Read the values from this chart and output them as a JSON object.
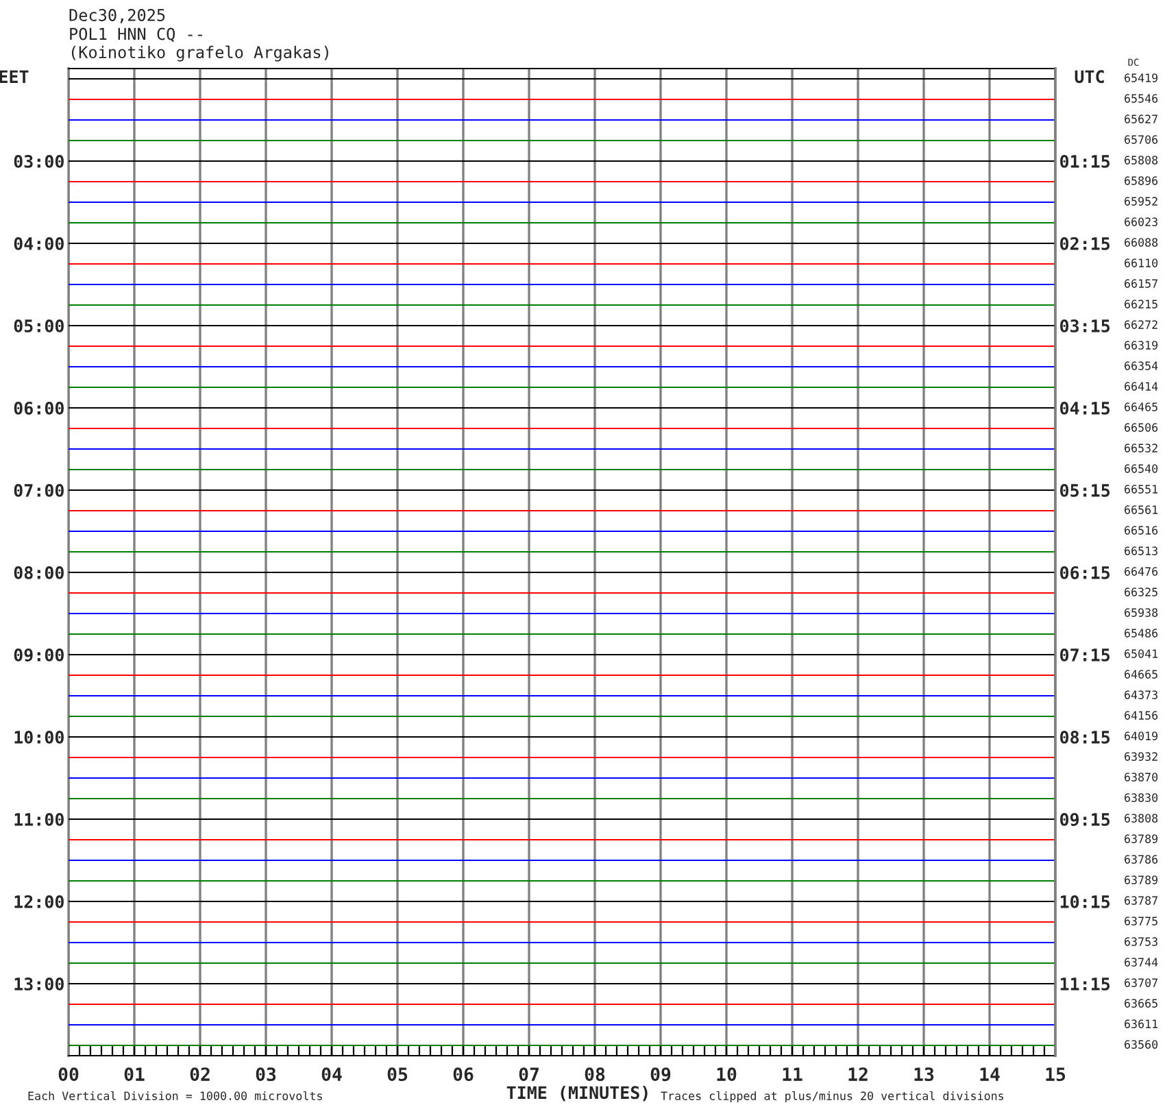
{
  "chart_data": {
    "type": "line",
    "title": "Dec30,2025",
    "subtitle": "POL1 HNN CQ --\n(Koinotiko grafelo Argakas)",
    "xlabel": "TIME (MINUTES)",
    "ylabel": "EET",
    "y2label": "UTC",
    "annotations": [
      "DC",
      "Each Vertical Division = 1000.00 microvolts",
      "Traces clipped at plus/minus 20 vertical divisions",
      "65419",
      "65546",
      "65627",
      "65706",
      "65808",
      "65896",
      "65952",
      "66023",
      "66088",
      "66110",
      "66157",
      "66215",
      "66272",
      "66319",
      "66354",
      "66414",
      "66465",
      "66506",
      "66532",
      "66540",
      "66551",
      "66561",
      "66516",
      "66513",
      "66476",
      "66325",
      "65938",
      "65486",
      "65041",
      "64665",
      "64373",
      "64156",
      "64019",
      "63932",
      "63870",
      "63830",
      "63808",
      "63789",
      "63786",
      "63789",
      "63787",
      "63775",
      "63753",
      "63744",
      "63707",
      "63665",
      "63611",
      "63560"
    ],
    "x": [
      0,
      15
    ],
    "series": [
      {
        "color": "#000000",
        "values": [
          2,
          2
        ]
      },
      {
        "color": "#ff0000",
        "values": [
          2.25,
          2.25
        ]
      },
      {
        "color": "#0000ff",
        "values": [
          2.5,
          2.5
        ]
      },
      {
        "color": "#008000",
        "values": [
          2.75,
          2.75
        ]
      },
      {
        "color": "#000000",
        "values": [
          3,
          3
        ]
      },
      {
        "color": "#ff0000",
        "values": [
          3.25,
          3.25
        ]
      },
      {
        "color": "#0000ff",
        "values": [
          3.5,
          3.5
        ]
      },
      {
        "color": "#008000",
        "values": [
          3.75,
          3.75
        ]
      },
      {
        "color": "#000000",
        "values": [
          4,
          4
        ]
      },
      {
        "color": "#ff0000",
        "values": [
          4.25,
          4.25
        ]
      },
      {
        "color": "#0000ff",
        "values": [
          4.5,
          4.5
        ]
      },
      {
        "color": "#008000",
        "values": [
          4.75,
          4.75
        ]
      },
      {
        "color": "#000000",
        "values": [
          5,
          5
        ]
      },
      {
        "color": "#ff0000",
        "values": [
          5.25,
          5.25
        ]
      },
      {
        "color": "#0000ff",
        "values": [
          5.5,
          5.5
        ]
      },
      {
        "color": "#008000",
        "values": [
          5.75,
          5.75
        ]
      },
      {
        "color": "#000000",
        "values": [
          6,
          6
        ]
      },
      {
        "color": "#ff0000",
        "values": [
          6.25,
          6.25
        ]
      },
      {
        "color": "#0000ff",
        "values": [
          6.5,
          6.5
        ]
      },
      {
        "color": "#008000",
        "values": [
          6.75,
          6.75
        ]
      },
      {
        "color": "#000000",
        "values": [
          7,
          7
        ]
      },
      {
        "color": "#ff0000",
        "values": [
          7.25,
          7.25
        ]
      },
      {
        "color": "#0000ff",
        "values": [
          7.5,
          7.5
        ]
      },
      {
        "color": "#008000",
        "values": [
          7.75,
          7.75
        ]
      },
      {
        "color": "#000000",
        "values": [
          8,
          8
        ]
      },
      {
        "color": "#ff0000",
        "values": [
          8.25,
          8.25
        ]
      },
      {
        "color": "#0000ff",
        "values": [
          8.5,
          8.5
        ]
      },
      {
        "color": "#008000",
        "values": [
          8.75,
          8.75
        ]
      },
      {
        "color": "#000000",
        "values": [
          9,
          9
        ]
      },
      {
        "color": "#ff0000",
        "values": [
          9.25,
          9.25
        ]
      },
      {
        "color": "#0000ff",
        "values": [
          9.5,
          9.5
        ]
      },
      {
        "color": "#008000",
        "values": [
          9.75,
          9.75
        ]
      },
      {
        "color": "#000000",
        "values": [
          10,
          10
        ]
      },
      {
        "color": "#ff0000",
        "values": [
          10.25,
          10.25
        ]
      },
      {
        "color": "#0000ff",
        "values": [
          10.5,
          10.5
        ]
      },
      {
        "color": "#008000",
        "values": [
          10.75,
          10.75
        ]
      },
      {
        "color": "#000000",
        "values": [
          11,
          11
        ]
      },
      {
        "color": "#ff0000",
        "values": [
          11.25,
          11.25
        ]
      },
      {
        "color": "#0000ff",
        "values": [
          11.5,
          11.5
        ]
      },
      {
        "color": "#008000",
        "values": [
          11.75,
          11.75
        ]
      },
      {
        "color": "#000000",
        "values": [
          12,
          12
        ]
      },
      {
        "color": "#ff0000",
        "values": [
          12.25,
          12.25
        ]
      },
      {
        "color": "#0000ff",
        "values": [
          12.5,
          12.5
        ]
      },
      {
        "color": "#008000",
        "values": [
          12.75,
          12.75
        ]
      },
      {
        "color": "#000000",
        "values": [
          13,
          13
        ]
      },
      {
        "color": "#ff0000",
        "values": [
          13.25,
          13.25
        ]
      },
      {
        "color": "#0000ff",
        "values": [
          13.5,
          13.5
        ]
      },
      {
        "color": "#008000",
        "values": [
          13.75,
          13.75
        ]
      }
    ],
    "xlim": [
      0,
      15
    ],
    "xticks": [
      {
        "value": 0,
        "label": "00"
      },
      {
        "value": 1,
        "label": "01"
      },
      {
        "value": 2,
        "label": "02"
      },
      {
        "value": 3,
        "label": "03"
      },
      {
        "value": 4,
        "label": "04"
      },
      {
        "value": 5,
        "label": "05"
      },
      {
        "value": 6,
        "label": "06"
      },
      {
        "value": 7,
        "label": "07"
      },
      {
        "value": 8,
        "label": "08"
      },
      {
        "value": 9,
        "label": "09"
      },
      {
        "value": 10,
        "label": "10"
      },
      {
        "value": 11,
        "label": "11"
      },
      {
        "value": 12,
        "label": "12"
      },
      {
        "value": 13,
        "label": "13"
      },
      {
        "value": 14,
        "label": "14"
      },
      {
        "value": 15,
        "label": "15"
      },
      {
        "value": 0.167,
        "label": null
      },
      {
        "value": 0.333,
        "label": null
      },
      {
        "value": 0.5,
        "label": null
      },
      {
        "value": 0.667,
        "label": null
      },
      {
        "value": 0.833,
        "label": null
      },
      {
        "value": 1.167,
        "label": null
      },
      {
        "value": 1.333,
        "label": null
      },
      {
        "value": 1.5,
        "label": null
      },
      {
        "value": 1.667,
        "label": null
      },
      {
        "value": 1.833,
        "label": null
      },
      {
        "value": 2.167,
        "label": null
      },
      {
        "value": 2.333,
        "label": null
      },
      {
        "value": 2.5,
        "label": null
      },
      {
        "value": 2.667,
        "label": null
      },
      {
        "value": 2.833,
        "label": null
      },
      {
        "value": 3.167,
        "label": null
      },
      {
        "value": 3.333,
        "label": null
      },
      {
        "value": 3.5,
        "label": null
      },
      {
        "value": 3.667,
        "label": null
      },
      {
        "value": 3.833,
        "label": null
      },
      {
        "value": 4.167,
        "label": null
      },
      {
        "value": 4.333,
        "label": null
      },
      {
        "value": 4.5,
        "label": null
      },
      {
        "value": 4.667,
        "label": null
      },
      {
        "value": 4.833,
        "label": null
      },
      {
        "value": 5.167,
        "label": null
      },
      {
        "value": 5.333,
        "label": null
      },
      {
        "value": 5.5,
        "label": null
      },
      {
        "value": 5.667,
        "label": null
      },
      {
        "value": 5.833,
        "label": null
      },
      {
        "value": 6.167,
        "label": null
      },
      {
        "value": 6.333,
        "label": null
      },
      {
        "value": 6.5,
        "label": null
      },
      {
        "value": 6.667,
        "label": null
      },
      {
        "value": 6.833,
        "label": null
      },
      {
        "value": 7.167,
        "label": null
      },
      {
        "value": 7.333,
        "label": null
      },
      {
        "value": 7.5,
        "label": null
      },
      {
        "value": 7.667,
        "label": null
      },
      {
        "value": 7.833,
        "label": null
      },
      {
        "value": 8.167,
        "label": null
      },
      {
        "value": 8.333,
        "label": null
      },
      {
        "value": 8.5,
        "label": null
      },
      {
        "value": 8.667,
        "label": null
      },
      {
        "value": 8.833,
        "label": null
      },
      {
        "value": 9.167,
        "label": null
      },
      {
        "value": 9.333,
        "label": null
      },
      {
        "value": 9.5,
        "label": null
      },
      {
        "value": 9.667,
        "label": null
      },
      {
        "value": 9.833,
        "label": null
      },
      {
        "value": 10.167,
        "label": null
      },
      {
        "value": 10.333,
        "label": null
      },
      {
        "value": 10.5,
        "label": null
      },
      {
        "value": 10.667,
        "label": null
      },
      {
        "value": 10.833,
        "label": null
      },
      {
        "value": 11.167,
        "label": null
      },
      {
        "value": 11.333,
        "label": null
      },
      {
        "value": 11.5,
        "label": null
      },
      {
        "value": 11.667,
        "label": null
      },
      {
        "value": 11.833,
        "label": null
      },
      {
        "value": 12.167,
        "label": null
      },
      {
        "value": 12.333,
        "label": null
      },
      {
        "value": 12.5,
        "label": null
      },
      {
        "value": 12.667,
        "label": null
      },
      {
        "value": 12.833,
        "label": null
      },
      {
        "value": 13.167,
        "label": null
      },
      {
        "value": 13.333,
        "label": null
      },
      {
        "value": 13.5,
        "label": null
      },
      {
        "value": 13.667,
        "label": null
      },
      {
        "value": 13.833,
        "label": null
      },
      {
        "value": 14.167,
        "label": null
      },
      {
        "value": 14.333,
        "label": null
      },
      {
        "value": 14.5,
        "label": null
      },
      {
        "value": 14.667,
        "label": null
      },
      {
        "value": 14.833,
        "label": null
      }
    ],
    "ylim": [
      13.875,
      1.875
    ],
    "yticks": [
      {
        "value": 3,
        "label": "03:00"
      },
      {
        "value": 4,
        "label": "04:00"
      },
      {
        "value": 5,
        "label": "05:00"
      },
      {
        "value": 6,
        "label": "06:00"
      },
      {
        "value": 7,
        "label": "07:00"
      },
      {
        "value": 8,
        "label": "08:00"
      },
      {
        "value": 9,
        "label": "09:00"
      },
      {
        "value": 10,
        "label": "10:00"
      },
      {
        "value": 11,
        "label": "11:00"
      },
      {
        "value": 12,
        "label": "12:00"
      },
      {
        "value": 13,
        "label": "13:00"
      }
    ],
    "y2lim": [
      12.125,
      0.125
    ],
    "y2ticks": [
      {
        "value": 1.25,
        "label": "01:15"
      },
      {
        "value": 2.25,
        "label": "02:15"
      },
      {
        "value": 3.25,
        "label": "03:15"
      },
      {
        "value": 4.25,
        "label": "04:15"
      },
      {
        "value": 5.25,
        "label": "05:15"
      },
      {
        "value": 6.25,
        "label": "06:15"
      },
      {
        "value": 7.25,
        "label": "07:15"
      },
      {
        "value": 8.25,
        "label": "08:15"
      },
      {
        "value": 9.25,
        "label": "09:15"
      },
      {
        "value": 10.25,
        "label": "10:15"
      },
      {
        "value": 11.25,
        "label": "11:15"
      }
    ],
    "grid": "x",
    "line_style": "solid"
  }
}
